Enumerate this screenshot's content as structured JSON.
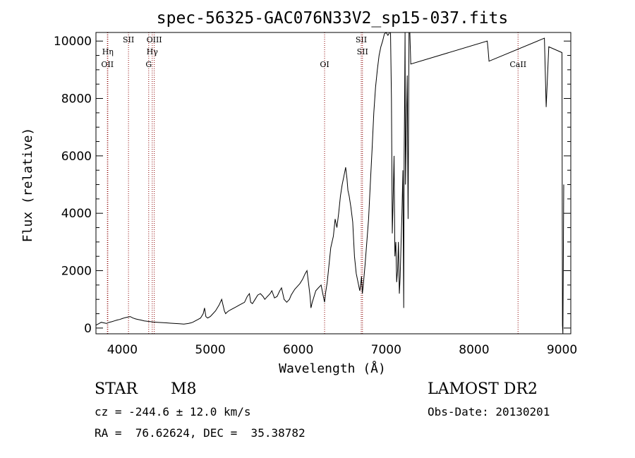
{
  "chart_data": {
    "type": "line",
    "title": "spec-56325-GAC076N33V2_sp15-037.fits",
    "xlabel": "Wavelength (Å)",
    "ylabel": "Flux (relative)",
    "xlim": [
      3700,
      9100
    ],
    "ylim": [
      -200,
      10300
    ],
    "x_ticks": [
      4000,
      5000,
      6000,
      7000,
      8000,
      9000
    ],
    "y_ticks": [
      0,
      2000,
      4000,
      6000,
      8000,
      10000
    ],
    "grid": false,
    "series": [
      {
        "color": "#000000",
        "x": [
          3700,
          3730,
          3760,
          3790,
          3820,
          3850,
          3880,
          3910,
          3940,
          3970,
          4000,
          4030,
          4060,
          4090,
          4120,
          4150,
          4180,
          4210,
          4250,
          4300,
          4350,
          4400,
          4450,
          4500,
          4550,
          4600,
          4650,
          4700,
          4750,
          4780,
          4800,
          4830,
          4860,
          4890,
          4920,
          4935,
          4950,
          4970,
          5000,
          5030,
          5060,
          5100,
          5130,
          5160,
          5175,
          5190,
          5210,
          5240,
          5270,
          5300,
          5330,
          5360,
          5390,
          5420,
          5445,
          5460,
          5480,
          5510,
          5540,
          5570,
          5600,
          5620,
          5650,
          5680,
          5700,
          5730,
          5760,
          5790,
          5810,
          5840,
          5870,
          5900,
          5920,
          5940,
          5960,
          5990,
          6020,
          6050,
          6080,
          6100,
          6120,
          6135,
          6145,
          6160,
          6180,
          6200,
          6230,
          6260,
          6280,
          6300,
          6310,
          6330,
          6350,
          6370,
          6400,
          6420,
          6440,
          6460,
          6480,
          6500,
          6520,
          6540,
          6555,
          6565,
          6580,
          6600,
          6620,
          6640,
          6660,
          6680,
          6700,
          6710,
          6720,
          6730,
          6740,
          6760,
          6780,
          6800,
          6820,
          6840,
          6860,
          6880,
          6900,
          6920,
          6940,
          6960,
          6980,
          7000,
          7020,
          7040,
          7050,
          7060,
          7070,
          7080,
          7090,
          7100,
          7110,
          7120,
          7130,
          7140,
          7150,
          7160,
          7170,
          7180,
          7190,
          7200,
          7205,
          7210,
          7215,
          7220,
          7230,
          7240,
          7250,
          7260,
          7270,
          7280,
          8150,
          8160,
          8170,
          8800,
          8820,
          8850,
          9000,
          9005,
          9010,
          9020
        ],
        "values": [
          100,
          150,
          200,
          180,
          160,
          200,
          220,
          250,
          280,
          300,
          330,
          360,
          380,
          400,
          350,
          320,
          300,
          280,
          250,
          230,
          210,
          200,
          190,
          180,
          170,
          160,
          150,
          140,
          160,
          180,
          200,
          250,
          300,
          350,
          500,
          700,
          400,
          350,
          400,
          500,
          600,
          800,
          1000,
          600,
          500,
          550,
          600,
          650,
          700,
          750,
          800,
          850,
          900,
          1100,
          1200,
          900,
          850,
          1000,
          1150,
          1200,
          1100,
          1000,
          1100,
          1200,
          1300,
          1050,
          1100,
          1300,
          1400,
          1000,
          900,
          1000,
          1150,
          1250,
          1350,
          1450,
          1550,
          1700,
          1900,
          2000,
          1500,
          1100,
          700,
          900,
          1100,
          1300,
          1400,
          1500,
          1200,
          900,
          1200,
          1600,
          2200,
          2800,
          3200,
          3800,
          3500,
          4000,
          4600,
          5000,
          5300,
          5600,
          5200,
          4800,
          4600,
          4200,
          3700,
          2500,
          1900,
          1600,
          1300,
          1500,
          1800,
          1200,
          1500,
          2200,
          3000,
          3800,
          5000,
          6200,
          7500,
          8400,
          9000,
          9500,
          9800,
          10000,
          10250,
          10300,
          10200,
          10300,
          10300,
          8000,
          3300,
          4500,
          6000,
          2500,
          3000,
          1600,
          2000,
          3000,
          1200,
          1800,
          3000,
          4000,
          5500,
          700,
          6000,
          8000,
          10300,
          5000,
          7000,
          8800,
          3800,
          10300,
          10300,
          9200,
          10000,
          9700,
          9300,
          10100,
          7700,
          9800,
          9600,
          100,
          -200,
          5000
        ]
      }
    ],
    "line_annotations": [
      {
        "x": 3830,
        "label": "OII",
        "row": 3
      },
      {
        "x": 3835,
        "label": "Hη",
        "row": 1
      },
      {
        "x": 4070,
        "label": "SII",
        "row": 0
      },
      {
        "x": 4300,
        "label": "G",
        "row": 3
      },
      {
        "x": 4340,
        "label": "Hγ",
        "row": 2
      },
      {
        "x": 4363,
        "label": "OIII",
        "row": 0
      },
      {
        "x": 6300,
        "label": "OI",
        "row": 3
      },
      {
        "x": 6717,
        "label": "SII",
        "row": 0
      },
      {
        "x": 6731,
        "label": "SII",
        "row": 1
      },
      {
        "x": 8500,
        "label": "CaII",
        "row": 3
      }
    ],
    "annotation_color": "#8b0000"
  },
  "info": {
    "object_class": "STAR",
    "subclass": "M8",
    "survey": "LAMOST DR2",
    "cz": "cz = -244.6 ± 12.0 km/s",
    "obs_date": "Obs-Date: 20130201",
    "coords": "RA =  76.62624, DEC =  35.38782"
  }
}
